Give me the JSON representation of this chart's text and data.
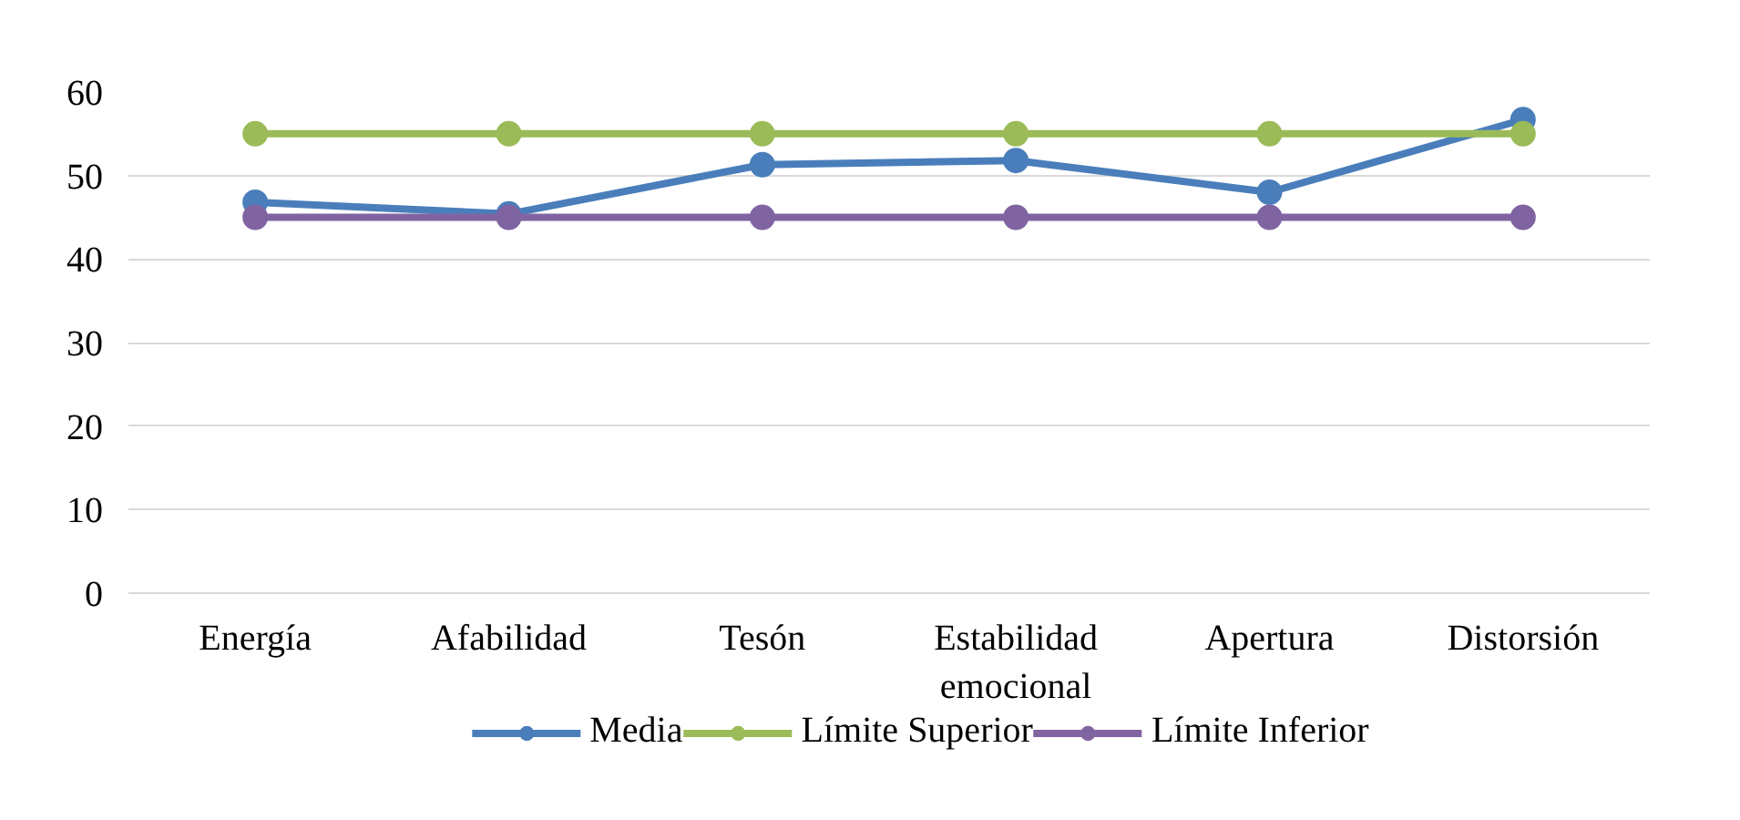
{
  "chart_data": {
    "type": "line",
    "categories": [
      "Energía",
      "Afabilidad",
      "Tesón",
      "Estabilidad emocional",
      "Apertura",
      "Distorsión"
    ],
    "series": [
      {
        "name": "Media",
        "color": "#4a7ebb",
        "values": [
          46.8,
          45.4,
          51.3,
          51.8,
          48.0,
          56.7
        ]
      },
      {
        "name": "Límite Superior",
        "color": "#9bbb59",
        "values": [
          55,
          55,
          55,
          55,
          55,
          55
        ]
      },
      {
        "name": "Límite Inferior",
        "color": "#8064a2",
        "values": [
          45,
          45,
          45,
          45,
          45,
          45
        ]
      }
    ],
    "ylim": [
      0,
      60
    ],
    "yticks": [
      0,
      10,
      20,
      30,
      40,
      50,
      60
    ],
    "grid": "y",
    "legend": "bottom",
    "marker": "circle",
    "line_style": "solid"
  }
}
